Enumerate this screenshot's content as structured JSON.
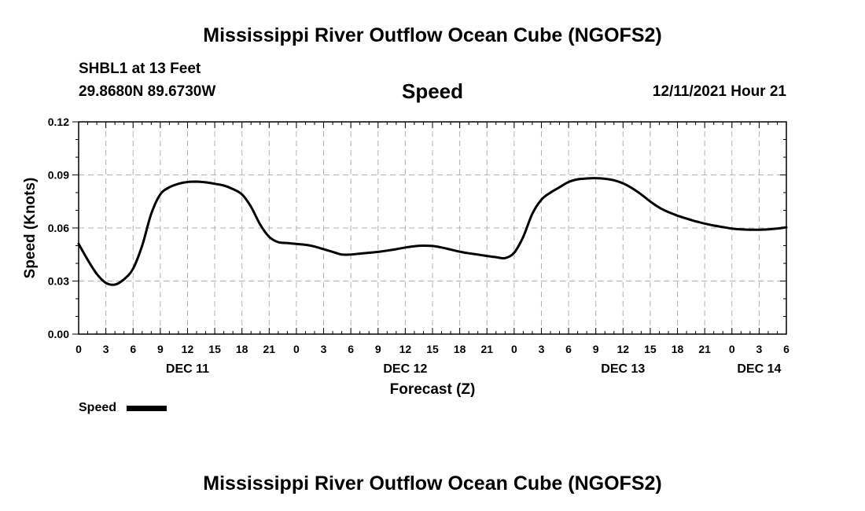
{
  "header": {
    "title": "Mississippi River Outflow Ocean Cube (NGOFS2)",
    "station": "SHBL1 at 13 Feet",
    "coords": "29.8680N  89.6730W",
    "plot_title": "Speed",
    "datetime": "12/11/2021 Hour 21"
  },
  "footer": {
    "title": "Mississippi River Outflow Ocean Cube (NGOFS2)"
  },
  "legend": {
    "label": "Speed"
  },
  "colors": {
    "line": "#000000",
    "grid": "#b0b0b0",
    "axis": "#000000"
  },
  "chart_data": {
    "type": "line",
    "title": "Speed",
    "xlabel": "Forecast (Z)",
    "ylabel": "Speed (Knots)",
    "xlim": [
      0,
      78
    ],
    "ylim": [
      0,
      0.12
    ],
    "yticks": [
      "0.00",
      "0.03",
      "0.06",
      "0.09",
      "0.12"
    ],
    "ytick_values": [
      0,
      0.03,
      0.06,
      0.09,
      0.12
    ],
    "xtick_labels": [
      "0",
      "3",
      "6",
      "9",
      "12",
      "15",
      "18",
      "21",
      "0",
      "3",
      "6",
      "9",
      "12",
      "15",
      "18",
      "21",
      "0",
      "3",
      "6",
      "9",
      "12",
      "15",
      "18",
      "21",
      "0",
      "3",
      "6"
    ],
    "date_labels": [
      {
        "label": "DEC 11",
        "hour": 12
      },
      {
        "label": "DEC 12",
        "hour": 36
      },
      {
        "label": "DEC 13",
        "hour": 60
      },
      {
        "label": "DEC 14",
        "hour": 75
      }
    ],
    "series": [
      {
        "name": "Speed",
        "x": [
          0,
          1,
          2,
          3,
          4,
          5,
          6,
          7,
          8,
          9,
          10,
          11,
          12,
          13,
          14,
          15,
          16,
          17,
          18,
          19,
          20,
          21,
          22,
          23,
          24,
          25,
          26,
          27,
          28,
          29,
          30,
          31,
          32,
          33,
          34,
          35,
          36,
          37,
          38,
          39,
          40,
          41,
          42,
          43,
          44,
          45,
          46,
          47,
          48,
          49,
          50,
          51,
          52,
          53,
          54,
          55,
          56,
          57,
          58,
          59,
          60,
          61,
          62,
          63,
          64,
          65,
          66,
          67,
          68,
          69,
          70,
          71,
          72,
          73,
          74,
          75,
          76,
          77,
          78
        ],
        "values": [
          0.051,
          0.042,
          0.034,
          0.029,
          0.028,
          0.031,
          0.037,
          0.05,
          0.068,
          0.079,
          0.083,
          0.085,
          0.086,
          0.0862,
          0.0858,
          0.085,
          0.084,
          0.082,
          0.079,
          0.072,
          0.062,
          0.055,
          0.052,
          0.0515,
          0.051,
          0.0505,
          0.0495,
          0.048,
          0.0465,
          0.045,
          0.045,
          0.0455,
          0.046,
          0.0465,
          0.0472,
          0.048,
          0.049,
          0.0497,
          0.05,
          0.0498,
          0.049,
          0.0478,
          0.0466,
          0.0457,
          0.045,
          0.0442,
          0.0435,
          0.043,
          0.046,
          0.055,
          0.068,
          0.076,
          0.08,
          0.083,
          0.086,
          0.0875,
          0.088,
          0.0882,
          0.0878,
          0.087,
          0.0852,
          0.0825,
          0.079,
          0.075,
          0.0715,
          0.069,
          0.067,
          0.0653,
          0.0638,
          0.0625,
          0.0614,
          0.0605,
          0.0597,
          0.0592,
          0.059,
          0.059,
          0.0592,
          0.0597,
          0.0603
        ]
      }
    ]
  }
}
